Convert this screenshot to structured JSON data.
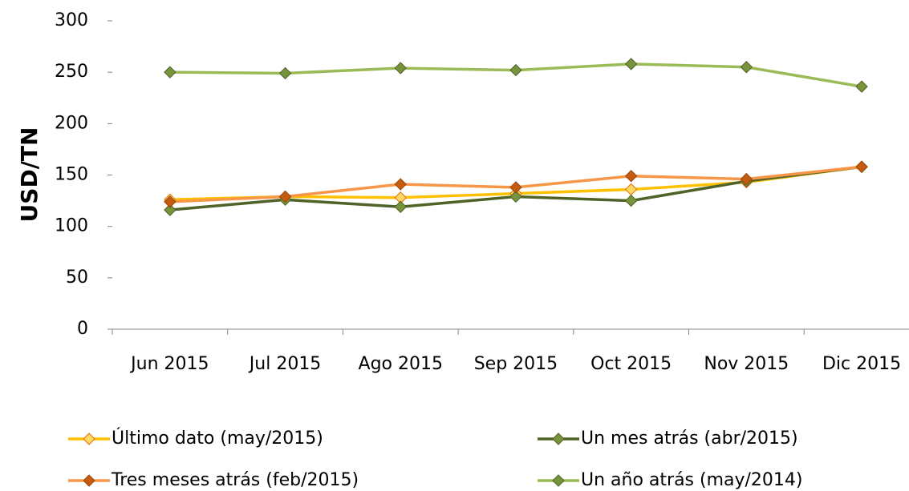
{
  "chart_data": {
    "type": "line",
    "y_label": "USD/TN",
    "categories": [
      "Jun 2015",
      "Jul 2015",
      "Ago 2015",
      "Sep 2015",
      "Oct 2015",
      "Nov 2015",
      "Dic 2015"
    ],
    "series": [
      {
        "name": "Último dato (may/2015)",
        "color": "#ffc000",
        "marker_color": "#ffd966",
        "values": [
          126,
          129,
          128,
          132,
          136,
          143,
          158
        ]
      },
      {
        "name": "Un mes atrás (abr/2015)",
        "color": "#4f6228",
        "marker_color": "#77933c",
        "values": [
          116,
          126,
          119,
          129,
          125,
          144,
          158
        ]
      },
      {
        "name": "Tres meses atrás (feb/2015)",
        "color": "#f79646",
        "marker_color": "#c55a11",
        "values": [
          124,
          129,
          141,
          138,
          149,
          146,
          158
        ]
      },
      {
        "name": "Un año atrás (may/2014)",
        "color": "#9bbb59",
        "marker_color": "#77933c",
        "values": [
          250,
          249,
          254,
          252,
          258,
          255,
          236
        ]
      }
    ],
    "ylim": [
      0,
      300
    ],
    "yticks": [
      0,
      50,
      100,
      150,
      200,
      250,
      300
    ],
    "grid": false,
    "legend": "bottom"
  }
}
